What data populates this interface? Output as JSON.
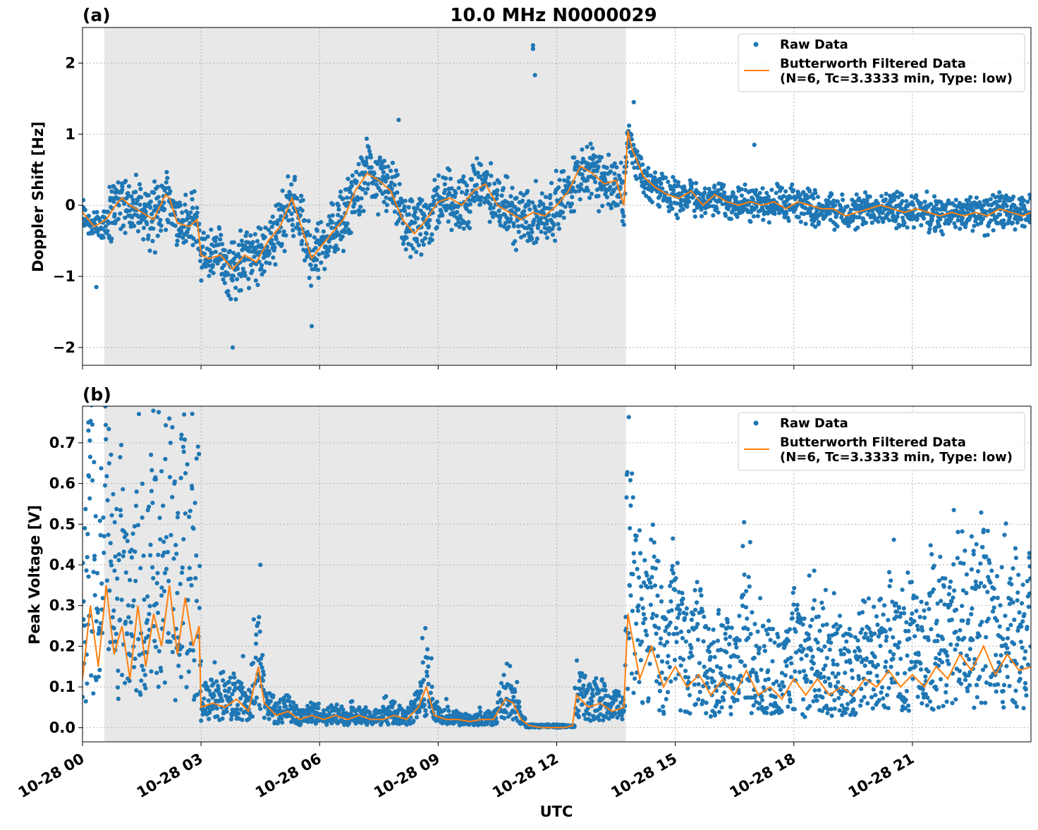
{
  "title": "10.0 MHz N0000029",
  "xlabel": "UTC",
  "legend": {
    "raw": "Raw Data",
    "filtered_line1": "Butterworth Filtered Data",
    "filtered_line2": "(N=6, Tc=3.3333 min, Type: low)"
  },
  "colors": {
    "raw": "#1f77b4",
    "filtered": "#ff7f0e",
    "shade": "#e8e8e8"
  },
  "chart_data": [
    {
      "type": "scatter",
      "panel_label": "(a)",
      "ylabel": "Doppler Shift [Hz]",
      "xlim": [
        0,
        24
      ],
      "ylim": [
        -2.25,
        2.5
      ],
      "yticks": [
        -2,
        -1,
        0,
        1,
        2
      ],
      "ytick_labels": [
        "−2",
        "−1",
        "0",
        "1",
        "2"
      ],
      "xtick_labels": [],
      "shaded_interval": [
        0.55,
        13.75
      ],
      "grid": true,
      "legend_position": "top-right",
      "series": [
        {
          "name": "Butterworth Filtered Data",
          "style": "line",
          "x": [
            0,
            0.3,
            0.6,
            0.9,
            1.0,
            1.2,
            1.5,
            1.8,
            2.1,
            2.2,
            2.4,
            2.7,
            2.9,
            3.0,
            3.2,
            3.5,
            3.8,
            4.1,
            4.4,
            4.7,
            5.0,
            5.3,
            5.6,
            5.8,
            6.0,
            6.3,
            6.6,
            6.9,
            7.2,
            7.5,
            7.8,
            8.1,
            8.4,
            8.7,
            9.0,
            9.3,
            9.6,
            9.9,
            10.2,
            10.5,
            10.8,
            11.1,
            11.4,
            11.7,
            12.0,
            12.3,
            12.6,
            12.9,
            13.2,
            13.5,
            13.7,
            13.8,
            13.9,
            14.2,
            14.5,
            14.8,
            15.1,
            15.4,
            15.7,
            16.0,
            16.3,
            16.6,
            16.9,
            17.2,
            17.5,
            17.8,
            18.1,
            18.4,
            18.7,
            19.0,
            19.3,
            19.6,
            19.9,
            20.2,
            20.5,
            20.8,
            21.1,
            21.4,
            21.7,
            22.0,
            22.3,
            22.6,
            22.9,
            23.2,
            23.5,
            23.8,
            24.0
          ],
          "y": [
            -0.1,
            -0.3,
            -0.2,
            0.05,
            0.1,
            0.0,
            -0.1,
            -0.2,
            0.15,
            0.1,
            -0.25,
            -0.3,
            -0.2,
            -0.7,
            -0.75,
            -0.7,
            -0.9,
            -0.7,
            -0.8,
            -0.5,
            -0.3,
            0.1,
            -0.4,
            -0.75,
            -0.6,
            -0.4,
            -0.2,
            0.2,
            0.45,
            0.35,
            0.2,
            -0.2,
            -0.4,
            -0.2,
            0.05,
            0.1,
            0.0,
            0.2,
            0.3,
            0.0,
            -0.1,
            -0.2,
            -0.1,
            -0.15,
            0.0,
            0.2,
            0.55,
            0.45,
            0.3,
            0.35,
            0.0,
            1.05,
            0.8,
            0.4,
            0.25,
            0.15,
            0.1,
            0.2,
            0.0,
            0.15,
            0.05,
            0.0,
            0.05,
            0.0,
            0.05,
            -0.05,
            0.05,
            0.0,
            -0.05,
            -0.05,
            -0.15,
            -0.1,
            -0.05,
            0.0,
            -0.05,
            -0.1,
            -0.05,
            -0.1,
            -0.15,
            -0.1,
            -0.15,
            -0.1,
            -0.15,
            -0.05,
            -0.1,
            -0.15,
            -0.1
          ]
        },
        {
          "name": "Raw Data",
          "style": "points",
          "spread": 0.35,
          "outliers": [
            [
              11.4,
              2.25
            ],
            [
              11.4,
              2.2
            ],
            [
              11.45,
              1.83
            ],
            [
              13.95,
              1.45
            ],
            [
              3.8,
              -2.0
            ],
            [
              0.35,
              -1.15
            ],
            [
              5.8,
              -1.7
            ],
            [
              17.0,
              0.85
            ],
            [
              8.0,
              1.2
            ]
          ]
        }
      ]
    },
    {
      "type": "scatter",
      "panel_label": "(b)",
      "ylabel": "Peak Voltage [V]",
      "xlim": [
        0,
        24
      ],
      "ylim": [
        -0.035,
        0.79
      ],
      "yticks": [
        0.0,
        0.1,
        0.2,
        0.3,
        0.4,
        0.5,
        0.6,
        0.7
      ],
      "ytick_labels": [
        "0.0",
        "0.1",
        "0.2",
        "0.3",
        "0.4",
        "0.5",
        "0.6",
        "0.7"
      ],
      "xticks": [
        0,
        3,
        6,
        9,
        12,
        15,
        18,
        21
      ],
      "xtick_labels": [
        "10-28 00",
        "10-28 03",
        "10-28 06",
        "10-28 09",
        "10-28 12",
        "10-28 15",
        "10-28 18",
        "10-28 21"
      ],
      "shaded_interval": [
        0.55,
        13.75
      ],
      "grid": true,
      "legend_position": "top-right",
      "series": [
        {
          "name": "Butterworth Filtered Data",
          "style": "line",
          "x": [
            0,
            0.2,
            0.4,
            0.6,
            0.8,
            1.0,
            1.2,
            1.4,
            1.6,
            1.8,
            2.0,
            2.2,
            2.4,
            2.6,
            2.8,
            2.95,
            3.0,
            3.3,
            3.6,
            3.9,
            4.2,
            4.45,
            4.6,
            4.9,
            5.2,
            5.5,
            5.8,
            6.1,
            6.4,
            6.7,
            7.0,
            7.3,
            7.6,
            7.9,
            8.2,
            8.5,
            8.7,
            8.9,
            9.2,
            9.5,
            9.8,
            10.1,
            10.4,
            10.7,
            10.9,
            11.1,
            11.3,
            11.6,
            11.9,
            12.2,
            12.4,
            12.5,
            12.8,
            13.1,
            13.4,
            13.7,
            13.8,
            14.1,
            14.4,
            14.7,
            15.0,
            15.3,
            15.6,
            15.9,
            16.2,
            16.5,
            16.8,
            17.1,
            17.4,
            17.7,
            18.0,
            18.3,
            18.6,
            18.9,
            19.2,
            19.5,
            19.8,
            20.1,
            20.4,
            20.7,
            21.0,
            21.3,
            21.6,
            21.9,
            22.2,
            22.5,
            22.8,
            23.1,
            23.4,
            23.7,
            24.0
          ],
          "y": [
            0.12,
            0.3,
            0.15,
            0.35,
            0.18,
            0.25,
            0.12,
            0.3,
            0.15,
            0.28,
            0.2,
            0.35,
            0.18,
            0.32,
            0.2,
            0.25,
            0.05,
            0.06,
            0.05,
            0.07,
            0.04,
            0.15,
            0.06,
            0.03,
            0.04,
            0.02,
            0.03,
            0.02,
            0.03,
            0.02,
            0.03,
            0.02,
            0.02,
            0.03,
            0.02,
            0.05,
            0.1,
            0.03,
            0.02,
            0.02,
            0.015,
            0.02,
            0.02,
            0.07,
            0.06,
            0.02,
            0.005,
            0.0,
            0.0,
            0.0,
            0.005,
            0.08,
            0.05,
            0.06,
            0.04,
            0.05,
            0.28,
            0.12,
            0.2,
            0.1,
            0.15,
            0.1,
            0.13,
            0.08,
            0.12,
            0.08,
            0.14,
            0.08,
            0.1,
            0.07,
            0.12,
            0.08,
            0.12,
            0.08,
            0.1,
            0.08,
            0.12,
            0.1,
            0.14,
            0.1,
            0.13,
            0.1,
            0.15,
            0.12,
            0.18,
            0.14,
            0.2,
            0.13,
            0.18,
            0.14,
            0.15
          ]
        },
        {
          "name": "Raw Data",
          "style": "points",
          "outliers": [
            [
              0.15,
              0.75
            ],
            [
              0.15,
              0.73
            ],
            [
              0.15,
              0.62
            ],
            [
              2.5,
              0.71
            ],
            [
              2.55,
              0.69
            ],
            [
              2.0,
              0.63
            ],
            [
              4.5,
              0.4
            ],
            [
              8.6,
              0.22
            ],
            [
              13.85,
              0.49
            ],
            [
              22.5,
              0.47
            ]
          ]
        }
      ]
    }
  ]
}
